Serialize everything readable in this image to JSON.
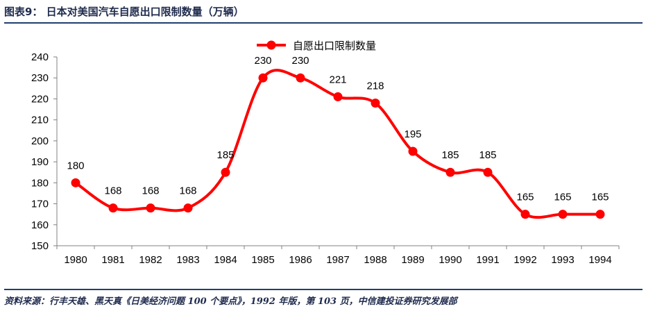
{
  "header": {
    "title": "图表9：  日本对美国汽车自愿出口限制数量（万辆）"
  },
  "footer": {
    "source": "资料来源：行丰天雄、黑天真《日美经济问题 100 个要点》，1992 年版，第 103 页，中信建投证券研究发展部"
  },
  "chart_data": {
    "type": "line",
    "categories": [
      "1980",
      "1981",
      "1982",
      "1983",
      "1984",
      "1985",
      "1986",
      "1987",
      "1988",
      "1989",
      "1990",
      "1991",
      "1992",
      "1993",
      "1994"
    ],
    "series": [
      {
        "name": "自愿出口限制数量",
        "values": [
          180,
          168,
          168,
          168,
          185,
          230,
          230,
          221,
          218,
          195,
          185,
          185,
          165,
          165,
          165
        ],
        "color": "#ff0000"
      }
    ],
    "ylim": [
      150,
      240
    ],
    "yticks": [
      150,
      160,
      170,
      180,
      190,
      200,
      210,
      220,
      230,
      240
    ],
    "smooth": true,
    "data_labels": true,
    "legend": "top-center",
    "grid": false
  }
}
